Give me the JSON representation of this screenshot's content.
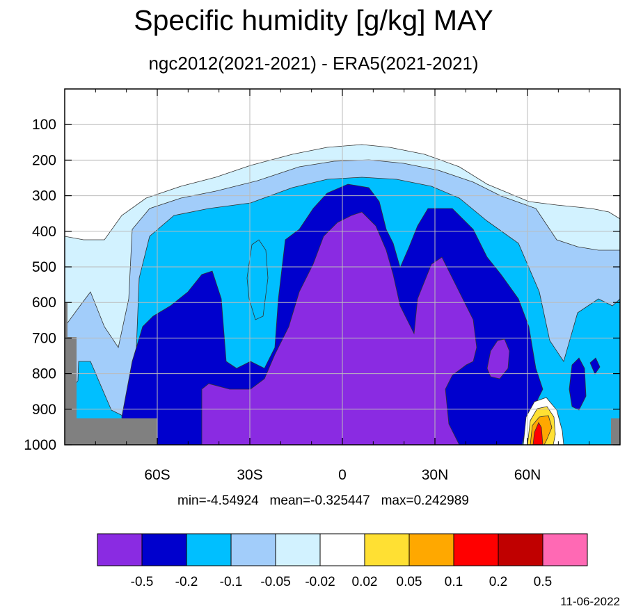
{
  "chart_data": {
    "type": "contour",
    "title": "Specific humidity [g/kg] MAY",
    "subtitle": "ngc2012(2021-2021) - ERA5(2021-2021)",
    "x_axis": {
      "range": [
        -90,
        90
      ],
      "ticks": [
        -60,
        -30,
        0,
        30,
        60
      ],
      "tick_labels": [
        "60S",
        "30S",
        "0",
        "30N",
        "60N"
      ]
    },
    "y_axis": {
      "range": [
        1000,
        0
      ],
      "ticks": [
        100,
        200,
        300,
        400,
        500,
        600,
        700,
        800,
        900,
        1000
      ],
      "tick_labels": [
        "100",
        "200",
        "300",
        "400",
        "500",
        "600",
        "700",
        "800",
        "900",
        "1000"
      ]
    },
    "grid": true,
    "contour_levels": [
      "-0.5",
      "-0.2",
      "-0.1",
      "-0.05",
      "-0.02",
      "0.02",
      "0.05",
      "0.1",
      "0.2",
      "0.5"
    ],
    "colors": [
      "#8a2be2",
      "#0000cd",
      "#00bfff",
      "#a2cdfa",
      "#d2f2ff",
      "#ffffff",
      "#ffe033",
      "#ffa800",
      "#ff0000",
      "#c00000",
      "#ff69b4"
    ],
    "stats": {
      "min": "-4.54924",
      "mean": "-0.325447",
      "max": "0.242989"
    },
    "missing_color": "#808080"
  },
  "stats_text": "min=-4.54924   mean=-0.325447   max=0.242989",
  "date": "11-06-2022"
}
